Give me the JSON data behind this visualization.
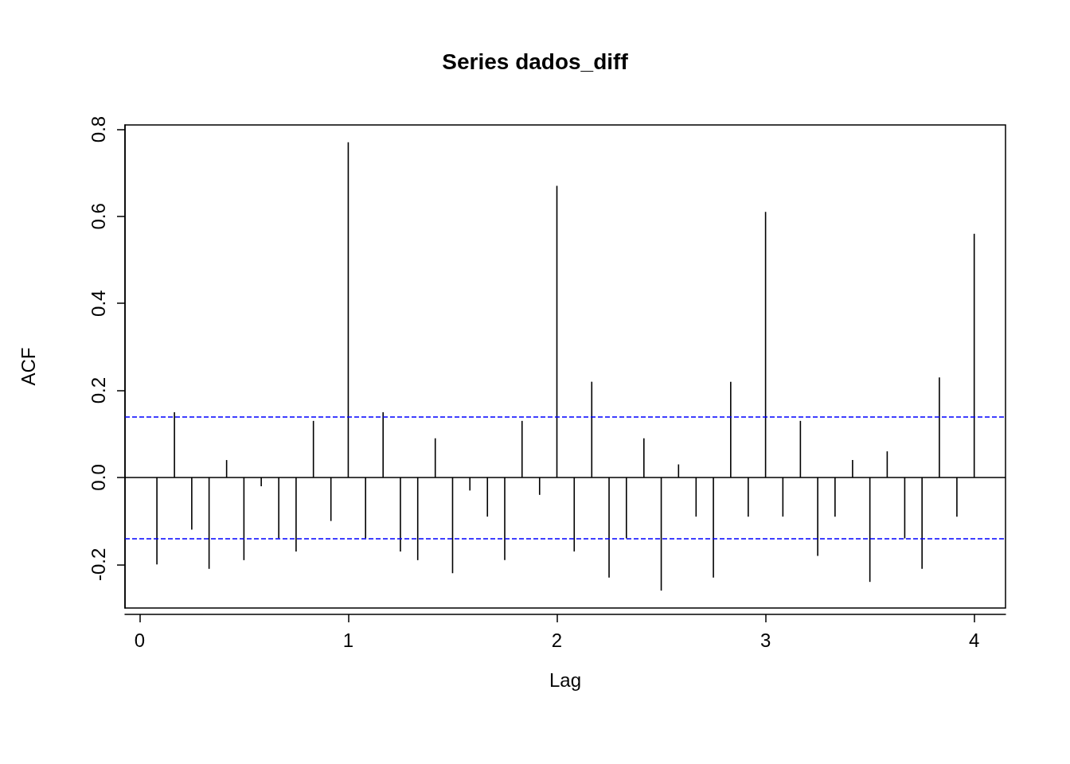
{
  "chart_data": {
    "type": "bar",
    "title": "Series dados_diff",
    "xlabel": "Lag",
    "ylabel": "ACF",
    "x": [
      0.083,
      0.167,
      0.25,
      0.333,
      0.417,
      0.5,
      0.583,
      0.667,
      0.75,
      0.833,
      0.917,
      1,
      1.083,
      1.167,
      1.25,
      1.333,
      1.417,
      1.5,
      1.583,
      1.667,
      1.75,
      1.833,
      1.917,
      2,
      2.083,
      2.167,
      2.25,
      2.333,
      2.417,
      2.5,
      2.583,
      2.667,
      2.75,
      2.833,
      2.917,
      3,
      3.083,
      3.167,
      3.25,
      3.333,
      3.417,
      3.5,
      3.583,
      3.667,
      3.75,
      3.833,
      3.917,
      4
    ],
    "values": [
      -0.2,
      0.15,
      -0.12,
      -0.21,
      0.04,
      -0.19,
      -0.02,
      -0.14,
      -0.17,
      0.13,
      -0.1,
      0.77,
      -0.14,
      0.15,
      -0.17,
      -0.19,
      0.09,
      -0.22,
      -0.03,
      -0.09,
      -0.19,
      0.13,
      -0.04,
      0.67,
      -0.17,
      0.22,
      -0.23,
      -0.14,
      0.09,
      -0.26,
      0.03,
      -0.09,
      -0.23,
      0.22,
      -0.09,
      0.61,
      -0.09,
      0.13,
      -0.18,
      -0.09,
      0.04,
      -0.24,
      0.06,
      -0.14,
      -0.21,
      0.23,
      -0.09,
      0.56
    ],
    "color": "#000000",
    "xlim": [
      -0.07,
      4.15
    ],
    "xticks": [
      0,
      1,
      2,
      3,
      4
    ],
    "ylim": [
      -0.3,
      0.81
    ],
    "yticks": [
      -0.2,
      {
        "value": 0,
        "label": "0.0"
      },
      0.2,
      0.4,
      0.6,
      0.8
    ],
    "ref_lines": [
      {
        "axis": "y",
        "value": 0,
        "color": "#000000",
        "line_style": "solid"
      },
      {
        "axis": "y",
        "value": 0.143,
        "color": "#0000ff",
        "line_style": "dashed"
      },
      {
        "axis": "y",
        "value": -0.143,
        "color": "#0000ff",
        "line_style": "dashed"
      }
    ],
    "grid": false
  }
}
